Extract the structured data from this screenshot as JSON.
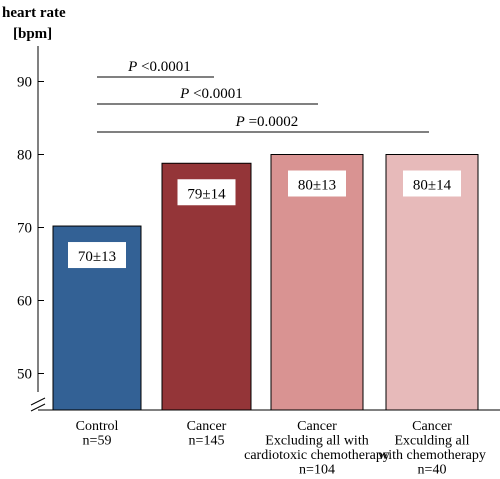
{
  "chart_data": {
    "type": "bar",
    "ylabel_lines": [
      "heart rate",
      "[bpm]"
    ],
    "ylim": [
      45,
      95
    ],
    "axis_break": true,
    "yticks": [
      50,
      60,
      70,
      80,
      90
    ],
    "grid": false,
    "categories": [
      {
        "lines": [
          "Control",
          "n=59"
        ]
      },
      {
        "lines": [
          "Cancer",
          "n=145"
        ]
      },
      {
        "lines": [
          "Cancer",
          "Excluding all with",
          "cardiotoxic chemotherapy",
          "n=104"
        ]
      },
      {
        "lines": [
          "Cancer",
          "Exculding all",
          "with chemotherapy",
          "n=40"
        ]
      }
    ],
    "values": [
      70.2,
      78.8,
      80,
      80
    ],
    "data_labels": [
      "70±13",
      "79±14",
      "80±13",
      "80±14"
    ],
    "colors": [
      "#336195",
      "#943538",
      "#d99392",
      "#e7baba"
    ],
    "comparisons": [
      {
        "from": 0,
        "to": 1,
        "p_italic": "P",
        "p_rest": " <0.0001"
      },
      {
        "from": 0,
        "to": 2,
        "p_italic": "P",
        "p_rest": " <0.0001"
      },
      {
        "from": 0,
        "to": 3,
        "p_italic": "P",
        "p_rest": " =0.0002"
      }
    ]
  }
}
